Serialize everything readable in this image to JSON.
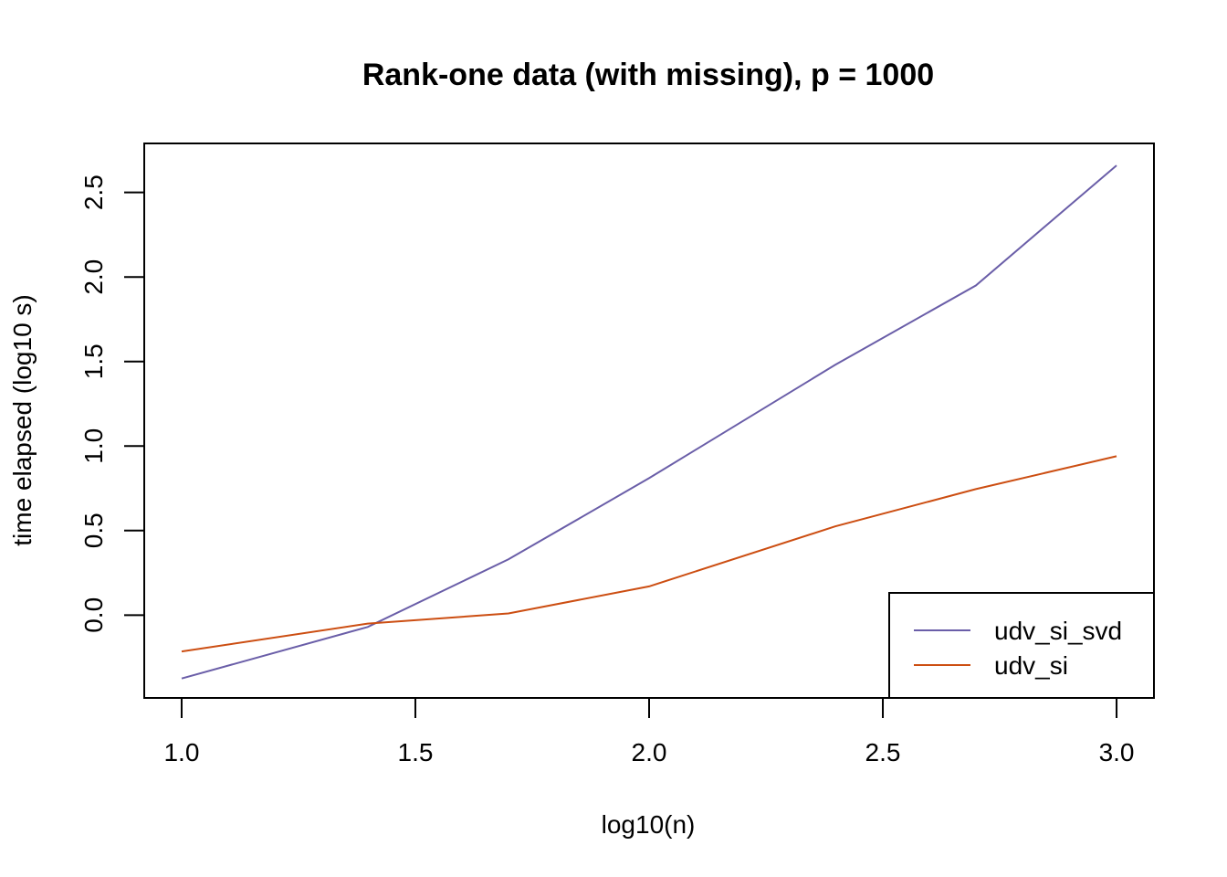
{
  "chart_data": {
    "type": "line",
    "title": "Rank-one data (with missing), p = 1000",
    "xlabel": "log10(n)",
    "ylabel": "time elapsed (log10 s)",
    "xlim": [
      0.92,
      3.08
    ],
    "ylim": [
      -0.49,
      2.79
    ],
    "x_ticks": [
      "1.0",
      "1.5",
      "2.0",
      "2.5",
      "3.0"
    ],
    "y_ticks": [
      "0.0",
      "0.5",
      "1.0",
      "1.5",
      "2.0",
      "2.5"
    ],
    "x": [
      1.0,
      1.398,
      1.699,
      2.0,
      2.398,
      2.699,
      3.0
    ],
    "series": [
      {
        "name": "udv_si_svd",
        "color": "#6a5ea8",
        "values": [
          -0.375,
          -0.07,
          0.33,
          0.81,
          1.48,
          1.95,
          2.66
        ]
      },
      {
        "name": "udv_si",
        "color": "#cc4e12",
        "values": [
          -0.215,
          -0.05,
          0.01,
          0.17,
          0.525,
          0.745,
          0.94
        ]
      }
    ],
    "legend": {
      "position": "bottom-right"
    },
    "grid": false
  }
}
